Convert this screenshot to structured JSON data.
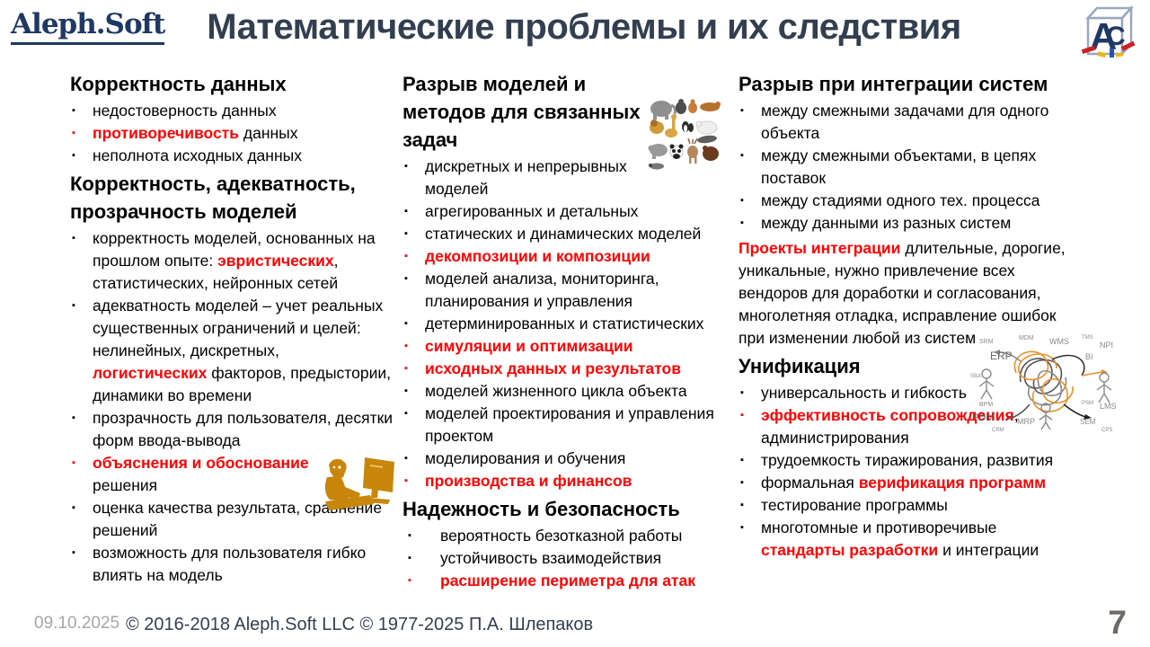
{
  "header": {
    "logo_text": "Aleph.Soft",
    "title": "Математические проблемы и их следствия",
    "cube_logo_letters": "АС"
  },
  "colors": {
    "accent_red": "#FF0000",
    "title_dark_slate": "#333F50",
    "logo_navy": "#1F3864",
    "clipart_gold": "#C8860B",
    "tangle_orange": "#E8912D"
  },
  "icons": {
    "cube_logo": "aleph-soft-cube-logo",
    "animals": "animals-collage-clipart",
    "person": "person-at-computer-clipart",
    "tangle": "systems-integration-tangle-diagram"
  },
  "columns": [
    {
      "sections": [
        {
          "heading": "Корректность данных",
          "items": [
            [
              {
                "t": "недостоверность данных"
              }
            ],
            [
              {
                "t": "противоречивость",
                "r": 1
              },
              {
                "t": " данных"
              }
            ],
            [
              {
                "t": "неполнота исходных данных"
              }
            ]
          ]
        },
        {
          "heading": "Корректность, адекватность, прозрачность моделей",
          "items": [
            [
              {
                "t": "корректность моделей, основанных на прошлом опыте: "
              },
              {
                "t": "эвристических",
                "r": 1
              },
              {
                "t": ", статистических, нейронных сетей"
              }
            ],
            [
              {
                "t": "адекватность моделей – учет реальных существенных ограничений и целей: нелинейных, дискретных, "
              },
              {
                "t": "логистических",
                "r": 1
              },
              {
                "t": " факторов, предыстории, динамики во времени"
              }
            ],
            [
              {
                "t": "прозрачность для пользователя, десятки форм ввода-вывода"
              }
            ],
            [
              {
                "t": "объяснения и обоснование",
                "r": 1
              },
              {
                "t": " решения"
              }
            ],
            [
              {
                "t": "оценка качества результата, сравнение решений"
              }
            ],
            [
              {
                "t": "возможность для пользователя гибко влиять на модель"
              }
            ]
          ]
        }
      ]
    },
    {
      "sections": [
        {
          "heading": "Разрыв моделей и методов для связанных задач",
          "items": [
            [
              {
                "t": "дискретных и непрерывных моделей"
              }
            ],
            [
              {
                "t": "агрегированных и детальных"
              }
            ],
            [
              {
                "t": "статических и динамических моделей"
              }
            ],
            [
              {
                "t": "декомпозиции и композиции",
                "r": 1
              }
            ],
            [
              {
                "t": "моделей анализа, мониторинга, планирования и управления"
              }
            ],
            [
              {
                "t": "детерминированных и статистических"
              }
            ],
            [
              {
                "t": "симуляции и оптимизации",
                "r": 1
              }
            ],
            [
              {
                "t": "исходных данных и результатов",
                "r": 1
              }
            ],
            [
              {
                "t": "моделей жизненного цикла объекта"
              }
            ],
            [
              {
                "t": "моделей проектирования и управления проектом"
              }
            ],
            [
              {
                "t": "моделирования и обучения"
              }
            ],
            [
              {
                "t": "производства и финансов",
                "r": 1
              }
            ]
          ]
        },
        {
          "heading": "Надежность и безопасность",
          "items": [
            [
              {
                "t": "вероятность безотказной работы"
              }
            ],
            [
              {
                "t": "устойчивость взаимодействия"
              }
            ],
            [
              {
                "t": "расширение периметра для атак",
                "r": 1
              }
            ]
          ]
        }
      ]
    },
    {
      "sections": [
        {
          "heading": "Разрыв при интеграции систем",
          "items": [
            [
              {
                "t": "между смежными задачами для одного объекта"
              }
            ],
            [
              {
                "t": "между смежными объектами, в цепях поставок"
              }
            ],
            [
              {
                "t": "между стадиями одного тех. процесса"
              }
            ],
            [
              {
                "t": "между данными из разных систем"
              }
            ]
          ]
        },
        {
          "para": [
            {
              "t": "Проекты интеграции",
              "r": 1
            },
            {
              "t": " длительные, дорогие, уникальные, нужно привлечение всех вендоров для доработки и согласования, многолетняя отладка, исправление ошибок при изменении любой из систем"
            }
          ]
        },
        {
          "heading": "Унификация",
          "items": [
            [
              {
                "t": "универсальность и гибкость"
              }
            ],
            [
              {
                "t": "эффективность сопровождения",
                "r": 1
              },
              {
                "t": ", администрирования"
              }
            ],
            [
              {
                "t": "трудоемкость тиражирования, развития"
              }
            ],
            [
              {
                "t": "формальная "
              },
              {
                "t": "верификация программ",
                "r": 1
              }
            ],
            [
              {
                "t": "тестирование программы"
              }
            ],
            [
              {
                "t": "многотомные и противоречивые "
              },
              {
                "t": "стандарты разработки",
                "r": 1
              },
              {
                "t": " и интеграции"
              }
            ]
          ]
        }
      ]
    }
  ],
  "diagram": {
    "labels": [
      "SRM",
      "MDM",
      "WMS",
      "TMS",
      "NPI",
      "ERP",
      "BI",
      "SBA",
      "BPM",
      "PDM",
      "CRM",
      "MRP",
      "PSM",
      "LMS",
      "SEM",
      "CPS"
    ]
  },
  "footer": {
    "date": "09.10.2025",
    "copyright": "© 2016-2018 Aleph.Soft LLC © 1977-2025 П.А. Шлепаков",
    "page": "7"
  }
}
